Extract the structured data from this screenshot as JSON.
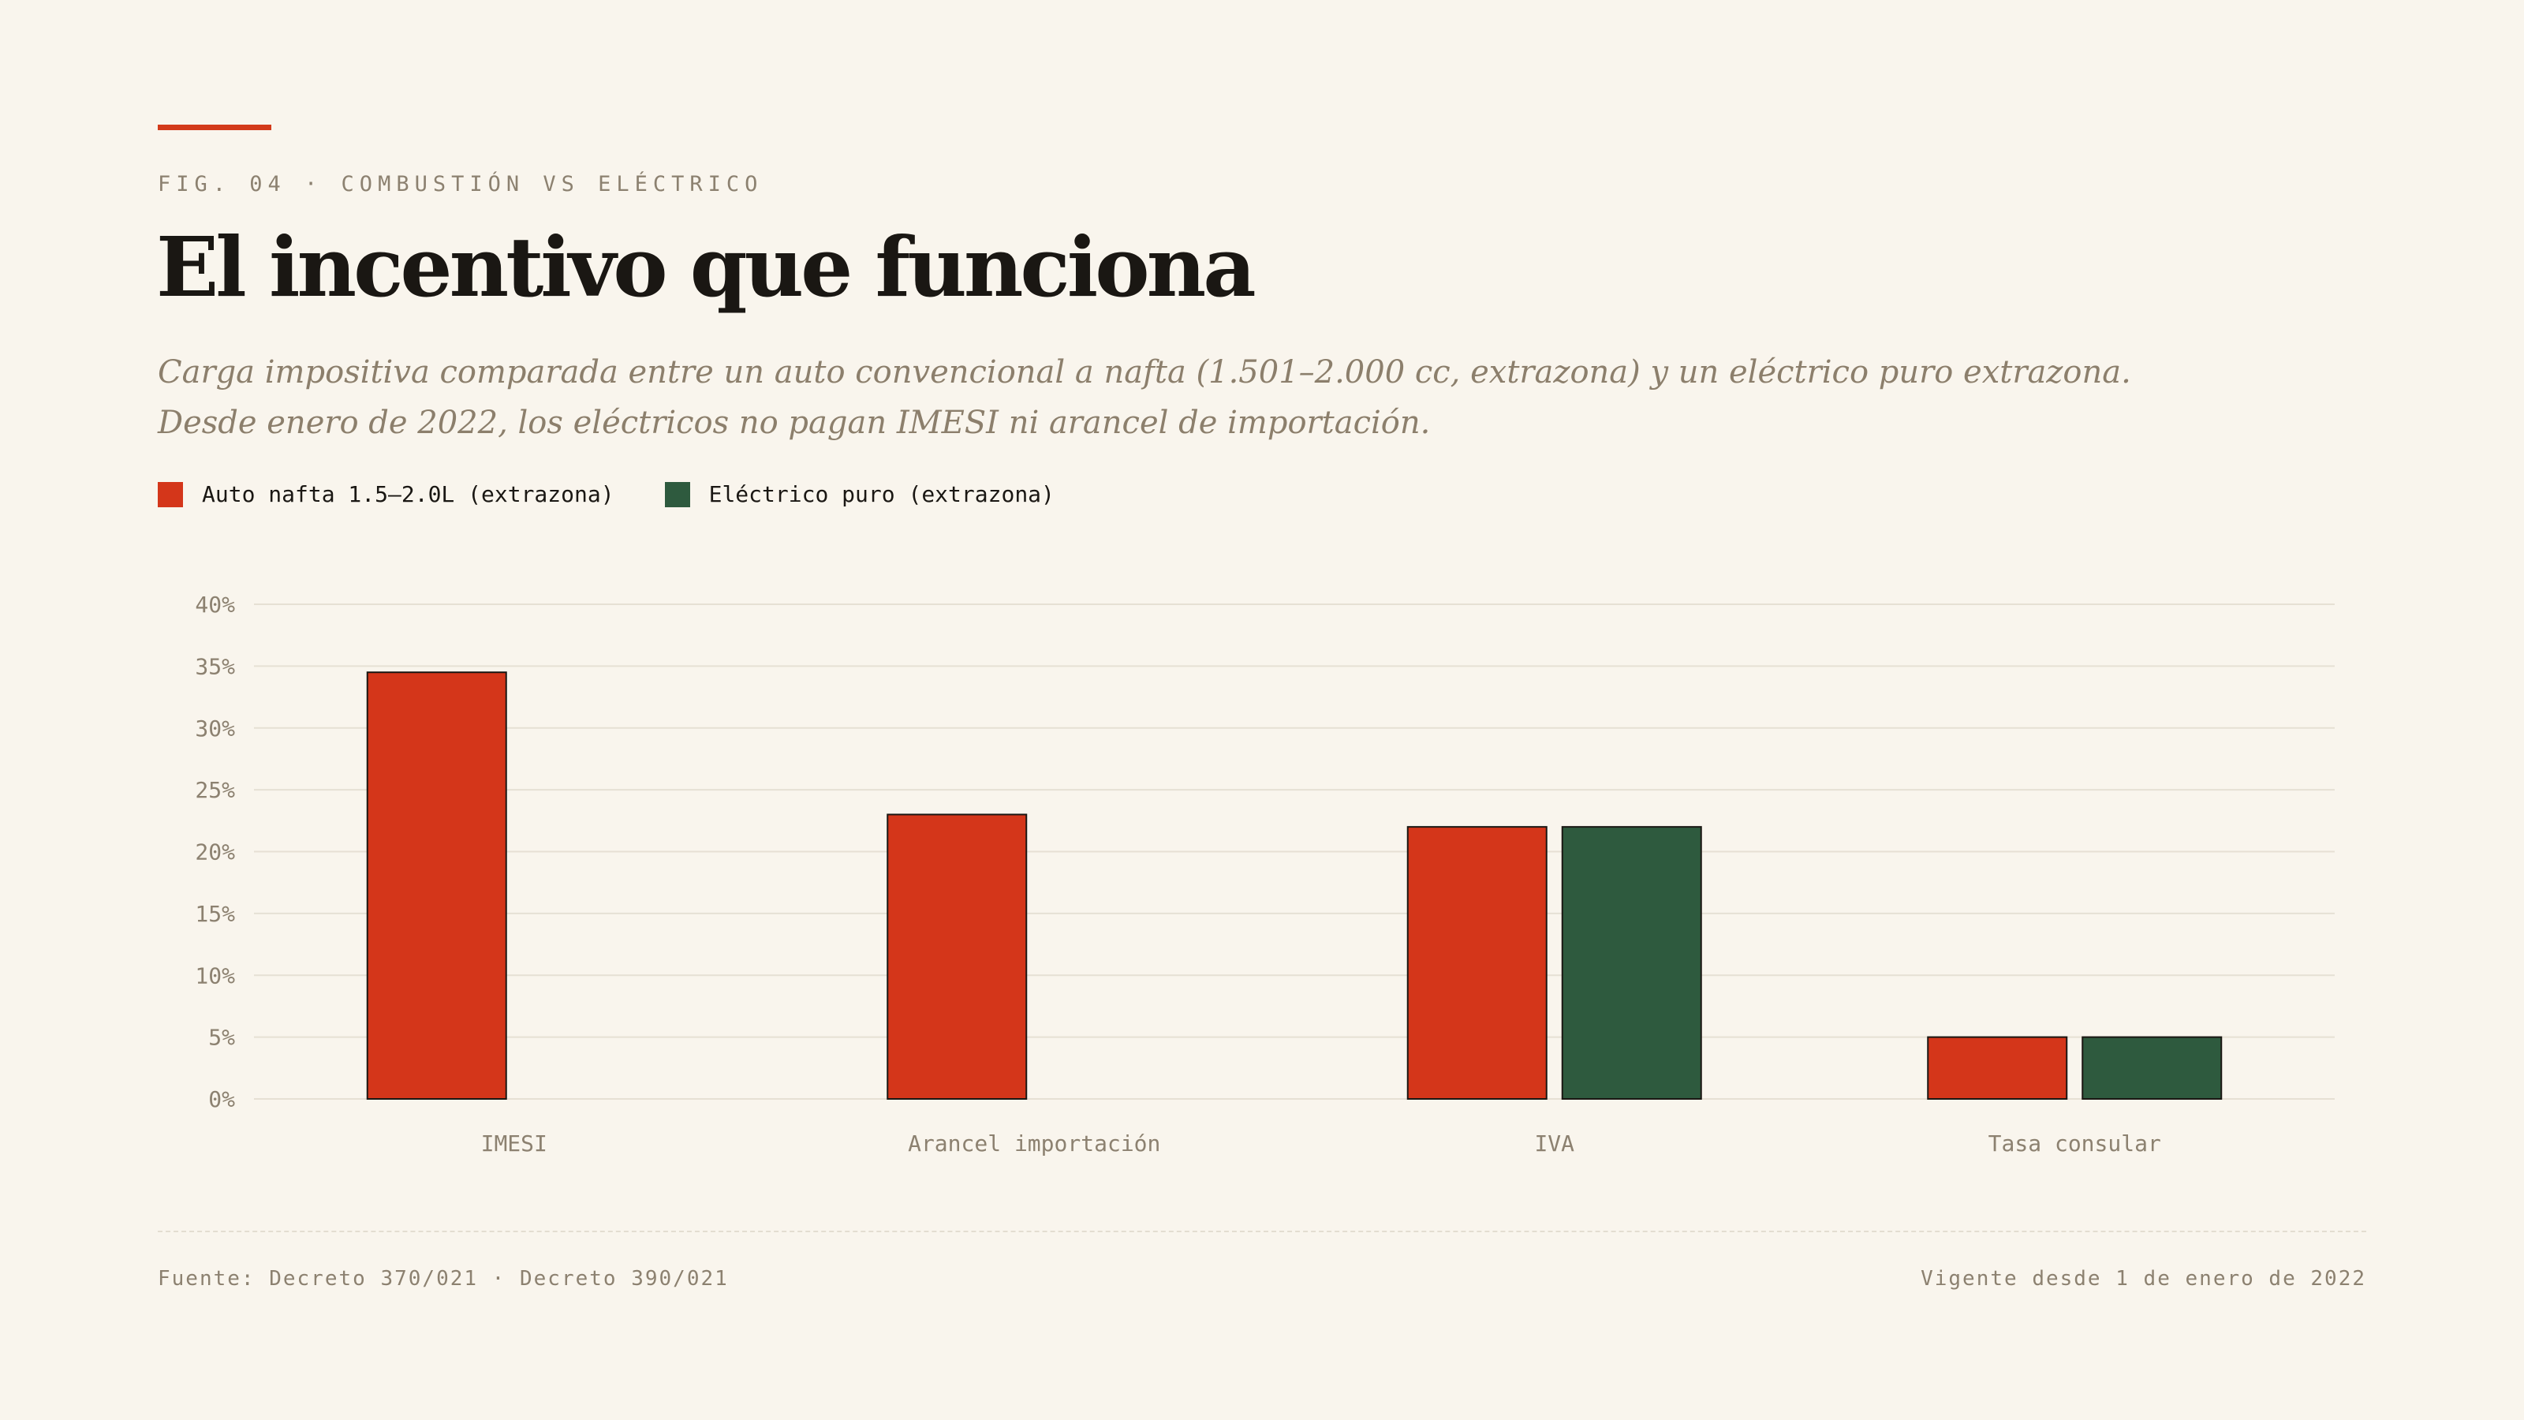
{
  "header": {
    "eyebrow": "FIG. 04 · COMBUSTIÓN VS ELÉCTRICO",
    "title": "El incentivo que funciona",
    "subtitle_line1": "Carga impositiva comparada entre un auto convencional a nafta (1.501–2.000 cc, extrazona) y un eléctrico puro extrazona.",
    "subtitle_line2": "Desde enero de 2022, los eléctricos no pagan IMESI ni arancel de importación."
  },
  "colors": {
    "accent": "#d33a1a",
    "combustion": "#d4361a",
    "electric": "#2e5a3e",
    "background": "#f9f5ed"
  },
  "chart_data": {
    "type": "bar",
    "categories": [
      "IMESI",
      "Arancel importación",
      "IVA",
      "Tasa consular"
    ],
    "series": [
      {
        "name": "Auto nafta 1.5–2.0L (extrazona)",
        "values": [
          34.5,
          23,
          22,
          5
        ]
      },
      {
        "name": "Eléctrico puro (extrazona)",
        "values": [
          0,
          0,
          22,
          5
        ]
      }
    ],
    "ylim": [
      0,
      40
    ],
    "yticks": [
      "0%",
      "5%",
      "10%",
      "15%",
      "20%",
      "25%",
      "30%",
      "35%",
      "40%"
    ],
    "ytick_values": [
      0,
      5,
      10,
      15,
      20,
      25,
      30,
      35,
      40
    ],
    "grid": true,
    "legend": "top-left"
  },
  "footer": {
    "source": "Fuente: Decreto 370/021 · Decreto 390/021",
    "note": "Vigente desde 1 de enero de 2022"
  }
}
